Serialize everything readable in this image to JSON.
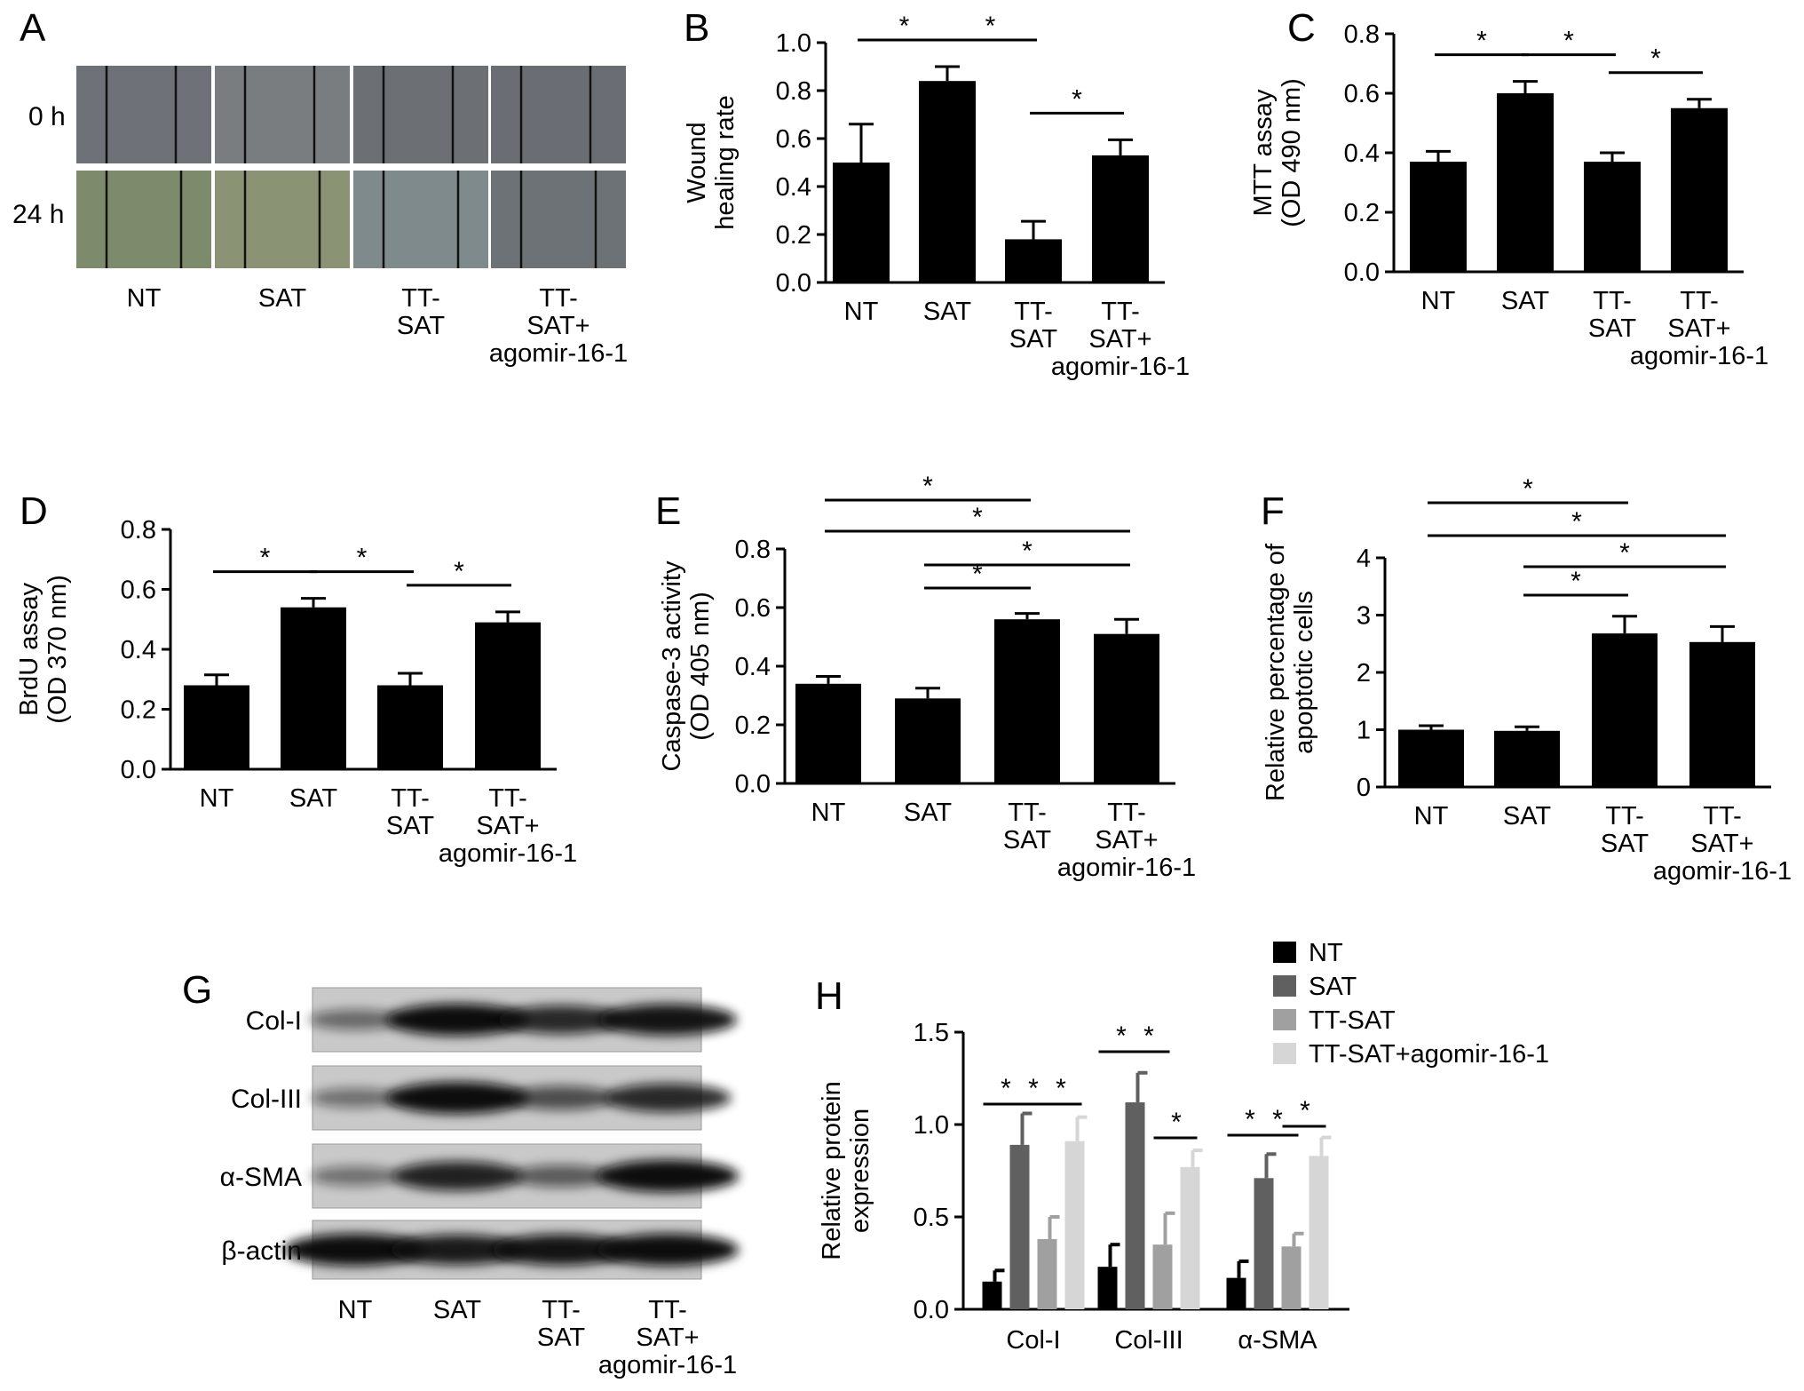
{
  "panels": {
    "A": {
      "letter": "A",
      "row_labels": [
        "0 h",
        "24 h"
      ],
      "group_labels": [
        [
          "NT"
        ],
        [
          "SAT"
        ],
        [
          "TT-",
          "SAT"
        ],
        [
          "TT-",
          "SAT+",
          "agomir-16-1"
        ]
      ]
    },
    "G": {
      "letter": "G",
      "proteins": [
        "Col-I",
        "Col-III",
        "α-SMA",
        "β-actin"
      ],
      "lane_labels": [
        [
          "NT"
        ],
        [
          "SAT"
        ],
        [
          "TT-",
          "SAT"
        ],
        [
          "TT-",
          "SAT+",
          "agomir-16-1"
        ]
      ],
      "band_intensity": [
        [
          0.35,
          1.0,
          0.8,
          0.95
        ],
        [
          0.3,
          1.0,
          0.55,
          0.8
        ],
        [
          0.3,
          0.85,
          0.45,
          1.0
        ],
        [
          1.0,
          0.9,
          0.95,
          1.0
        ]
      ]
    }
  },
  "chart_data": [
    {
      "id": "B",
      "letter": "B",
      "type": "bar",
      "categories": [
        [
          "NT"
        ],
        [
          "SAT"
        ],
        [
          "TT-",
          "SAT"
        ],
        [
          "TT-",
          "SAT+",
          "agomir-16-1"
        ]
      ],
      "values": [
        0.5,
        0.84,
        0.18,
        0.53
      ],
      "errors": [
        0.16,
        0.06,
        0.075,
        0.065
      ],
      "ylabel": [
        "Wound",
        "healing rate"
      ],
      "ylim": [
        0,
        1.0
      ],
      "yticks": [
        "0.0",
        "0.2",
        "0.4",
        "0.6",
        "0.8",
        "1.0"
      ],
      "significance": [
        {
          "from": 0,
          "to": 1,
          "label": "*"
        },
        {
          "from": 1,
          "to": 2,
          "label": "*"
        },
        {
          "from": 2,
          "to": 3,
          "label": "*"
        }
      ]
    },
    {
      "id": "C",
      "letter": "C",
      "type": "bar",
      "categories": [
        [
          "NT"
        ],
        [
          "SAT"
        ],
        [
          "TT-",
          "SAT"
        ],
        [
          "TT-",
          "SAT+",
          "agomir-16-1"
        ]
      ],
      "values": [
        0.37,
        0.6,
        0.37,
        0.55
      ],
      "errors": [
        0.035,
        0.04,
        0.03,
        0.03
      ],
      "ylabel": [
        "MTT assay",
        "(OD 490 nm)"
      ],
      "ylim": [
        0,
        0.8
      ],
      "yticks": [
        "0.0",
        "0.2",
        "0.4",
        "0.6",
        "0.8"
      ],
      "significance": [
        {
          "from": 0,
          "to": 1,
          "label": "*"
        },
        {
          "from": 1,
          "to": 2,
          "label": "*"
        },
        {
          "from": 2,
          "to": 3,
          "label": "*"
        }
      ]
    },
    {
      "id": "D",
      "letter": "D",
      "type": "bar",
      "categories": [
        [
          "NT"
        ],
        [
          "SAT"
        ],
        [
          "TT-",
          "SAT"
        ],
        [
          "TT-",
          "SAT+",
          "agomir-16-1"
        ]
      ],
      "values": [
        0.28,
        0.54,
        0.28,
        0.49
      ],
      "errors": [
        0.035,
        0.03,
        0.04,
        0.035
      ],
      "ylabel": [
        "BrdU assay",
        "(OD 370 nm)"
      ],
      "ylim": [
        0,
        0.8
      ],
      "yticks": [
        "0.0",
        "0.2",
        "0.4",
        "0.6",
        "0.8"
      ],
      "significance": [
        {
          "from": 0,
          "to": 1,
          "label": "*"
        },
        {
          "from": 1,
          "to": 2,
          "label": "*"
        },
        {
          "from": 2,
          "to": 3,
          "label": "*"
        }
      ]
    },
    {
      "id": "E",
      "letter": "E",
      "type": "bar",
      "categories": [
        [
          "NT"
        ],
        [
          "SAT"
        ],
        [
          "TT-",
          "SAT"
        ],
        [
          "TT-",
          "SAT+",
          "agomir-16-1"
        ]
      ],
      "values": [
        0.34,
        0.29,
        0.56,
        0.51
      ],
      "errors": [
        0.025,
        0.035,
        0.02,
        0.05
      ],
      "ylabel": [
        "Caspase-3 activity",
        "(OD 405 nm)"
      ],
      "ylim": [
        0,
        0.8
      ],
      "yticks": [
        "0.0",
        "0.2",
        "0.4",
        "0.6",
        "0.8"
      ],
      "significance": [
        {
          "from": 0,
          "to": 2,
          "label": "*"
        },
        {
          "from": 0,
          "to": 3,
          "label": "*"
        },
        {
          "from": 1,
          "to": 3,
          "label": "*"
        },
        {
          "from": 1,
          "to": 2,
          "label": "*"
        }
      ]
    },
    {
      "id": "F",
      "letter": "F",
      "type": "bar",
      "categories": [
        [
          "NT"
        ],
        [
          "SAT"
        ],
        [
          "TT-",
          "SAT"
        ],
        [
          "TT-",
          "SAT+",
          "agomir-16-1"
        ]
      ],
      "values": [
        1.0,
        0.98,
        2.68,
        2.53
      ],
      "errors": [
        0.07,
        0.07,
        0.3,
        0.27
      ],
      "ylabel": [
        "Relative percentage of",
        "apoptotic cells"
      ],
      "ylim": [
        0,
        4
      ],
      "yticks": [
        "0",
        "1",
        "2",
        "3",
        "4"
      ],
      "significance": [
        {
          "from": 0,
          "to": 2,
          "label": "*"
        },
        {
          "from": 0,
          "to": 3,
          "label": "*"
        },
        {
          "from": 1,
          "to": 3,
          "label": "*"
        },
        {
          "from": 1,
          "to": 2,
          "label": "*"
        }
      ]
    },
    {
      "id": "H",
      "letter": "H",
      "type": "bar",
      "categories": [
        "Col-I",
        "Col-III",
        "α-SMA"
      ],
      "series": [
        {
          "name": "NT",
          "color": "#000000",
          "values": [
            0.15,
            0.23,
            0.17
          ],
          "errors": [
            0.06,
            0.12,
            0.09
          ]
        },
        {
          "name": "SAT",
          "color": "#606060",
          "values": [
            0.89,
            1.12,
            0.71
          ],
          "errors": [
            0.17,
            0.16,
            0.13
          ]
        },
        {
          "name": "TT-SAT",
          "color": "#a0a0a0",
          "values": [
            0.38,
            0.35,
            0.34
          ],
          "errors": [
            0.12,
            0.17,
            0.07
          ]
        },
        {
          "name": "TT-SAT+agomir-16-1",
          "color": "#d6d6d6",
          "values": [
            0.91,
            0.77,
            0.83
          ],
          "errors": [
            0.13,
            0.09,
            0.1
          ]
        }
      ],
      "ylabel": [
        "Relative protein",
        "expression"
      ],
      "ylim": [
        0,
        1.5
      ],
      "yticks": [
        "0.0",
        "0.5",
        "1.0",
        "1.5"
      ],
      "legend": "top-right",
      "significance": [
        {
          "group": 0,
          "pairs": [
            [
              0,
              1
            ],
            [
              1,
              2
            ],
            [
              2,
              3
            ]
          ],
          "label": "*"
        },
        {
          "group": 1,
          "pairs": [
            [
              0,
              1
            ],
            [
              1,
              2
            ],
            [
              2,
              3
            ]
          ],
          "label": "*"
        },
        {
          "group": 2,
          "pairs": [
            [
              0,
              1
            ],
            [
              1,
              2
            ],
            [
              2,
              3
            ]
          ],
          "label": "*"
        }
      ]
    }
  ]
}
